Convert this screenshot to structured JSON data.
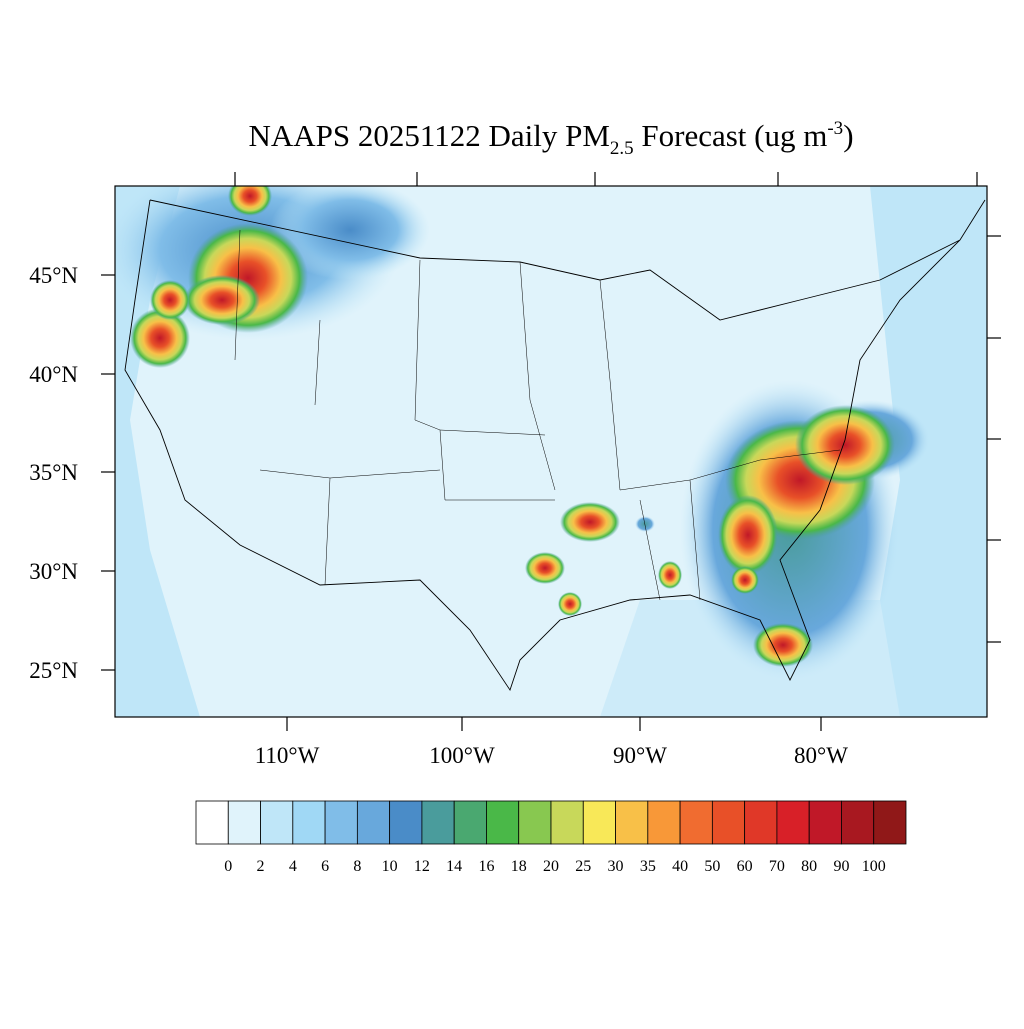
{
  "title": {
    "text": "NAAPS 20251122 Daily PM",
    "subscript": "2.5",
    "middle": " Forecast (ug m",
    "superscript": "-3",
    "end": ")"
  },
  "latitude_labels": [
    "45°N",
    "40°N",
    "35°N",
    "30°N",
    "25°N"
  ],
  "longitude_labels": [
    "110°W",
    "100°W",
    "90°W",
    "80°W"
  ],
  "colorbar": {
    "levels": [
      0,
      2,
      4,
      6,
      8,
      10,
      12,
      14,
      16,
      18,
      20,
      25,
      30,
      35,
      40,
      50,
      60,
      70,
      80,
      90,
      100
    ],
    "colors": [
      "#ffffff",
      "#e0f3fb",
      "#bfe6f8",
      "#a0d8f5",
      "#80bde8",
      "#68a8dc",
      "#4a8cc8",
      "#4a9c9c",
      "#4aa870",
      "#4ab848",
      "#88c850",
      "#c8d85a",
      "#f8e858",
      "#f8c048",
      "#f89838",
      "#f06c30",
      "#e85028",
      "#e03828",
      "#d82028",
      "#c01828",
      "#a81820",
      "#901818"
    ]
  }
}
